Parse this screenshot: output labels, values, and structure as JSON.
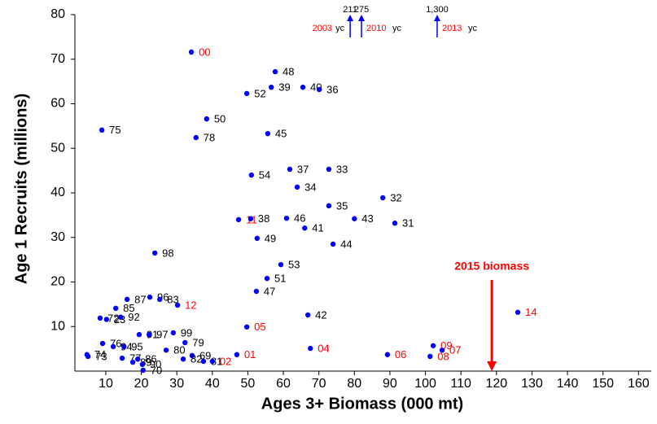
{
  "chart_data": {
    "type": "scatter",
    "x_label": "Ages 3+ Biomass (000 mt)",
    "y_label": "Age 1 Recruits (millions)",
    "xlim": [
      1.3,
      163.6
    ],
    "ylim": [
      0,
      80
    ],
    "xticks": [
      10,
      20,
      30,
      40,
      50,
      60,
      70,
      80,
      90,
      100,
      110,
      120,
      130,
      140,
      150,
      160
    ],
    "yticks": [
      10,
      20,
      30,
      40,
      50,
      60,
      70,
      80
    ],
    "marker_color": "#0000ff",
    "points": [
      {
        "x": 34.1,
        "y": 71.6,
        "label": "00",
        "color": "#ff0000"
      },
      {
        "x": 57.7,
        "y": 67.2,
        "label": "48",
        "color": "#000000"
      },
      {
        "x": 56.6,
        "y": 63.7,
        "label": "39",
        "color": "#000000"
      },
      {
        "x": 65.5,
        "y": 63.7,
        "label": "40",
        "color": "#000000"
      },
      {
        "x": 70.1,
        "y": 63.2,
        "label": "36",
        "color": "#000000"
      },
      {
        "x": 49.7,
        "y": 62.3,
        "label": "52",
        "color": "#000000"
      },
      {
        "x": 38.4,
        "y": 56.6,
        "label": "50",
        "color": "#000000"
      },
      {
        "x": 8.9,
        "y": 54.1,
        "label": "75",
        "color": "#000000"
      },
      {
        "x": 55.6,
        "y": 53.3,
        "label": "45",
        "color": "#000000"
      },
      {
        "x": 35.4,
        "y": 52.4,
        "label": "78",
        "color": "#000000"
      },
      {
        "x": 61.8,
        "y": 45.3,
        "label": "37",
        "color": "#000000"
      },
      {
        "x": 72.8,
        "y": 45.3,
        "label": "33",
        "color": "#000000"
      },
      {
        "x": 51.0,
        "y": 44.0,
        "label": "54",
        "color": "#000000"
      },
      {
        "x": 63.9,
        "y": 41.3,
        "label": "34",
        "color": "#000000"
      },
      {
        "x": 88.0,
        "y": 38.9,
        "label": "32",
        "color": "#000000"
      },
      {
        "x": 72.8,
        "y": 37.1,
        "label": "35",
        "color": "#000000"
      },
      {
        "x": 47.4,
        "y": 34.0,
        "label": "11",
        "color": "#ff0000"
      },
      {
        "x": 50.8,
        "y": 34.2,
        "label": "38",
        "color": "#000000"
      },
      {
        "x": 60.9,
        "y": 34.3,
        "label": "46",
        "color": "#000000"
      },
      {
        "x": 80.0,
        "y": 34.2,
        "label": "43",
        "color": "#000000"
      },
      {
        "x": 91.4,
        "y": 33.2,
        "label": "31",
        "color": "#000000"
      },
      {
        "x": 66.0,
        "y": 32.1,
        "label": "41",
        "color": "#000000"
      },
      {
        "x": 52.6,
        "y": 29.8,
        "label": "49",
        "color": "#000000"
      },
      {
        "x": 74.0,
        "y": 28.5,
        "label": "44",
        "color": "#000000"
      },
      {
        "x": 23.8,
        "y": 26.5,
        "label": "98",
        "color": "#000000"
      },
      {
        "x": 59.3,
        "y": 23.9,
        "label": "53",
        "color": "#000000"
      },
      {
        "x": 55.4,
        "y": 20.8,
        "label": "51",
        "color": "#000000"
      },
      {
        "x": 52.4,
        "y": 17.9,
        "label": "47",
        "color": "#000000"
      },
      {
        "x": 16.0,
        "y": 16.1,
        "label": "87",
        "color": "#000000"
      },
      {
        "x": 22.4,
        "y": 16.6,
        "label": "96",
        "color": "#000000"
      },
      {
        "x": 25.2,
        "y": 16.1,
        "label": "83",
        "color": "#000000"
      },
      {
        "x": 30.2,
        "y": 14.8,
        "label": "12",
        "color": "#ff0000"
      },
      {
        "x": 12.8,
        "y": 14.1,
        "label": "85",
        "color": "#000000"
      },
      {
        "x": 8.4,
        "y": 11.9,
        "label": "72",
        "color": "#000000"
      },
      {
        "x": 10.2,
        "y": 11.6,
        "label": "23",
        "color": "#000000"
      },
      {
        "x": 14.2,
        "y": 12.1,
        "label": "92",
        "color": "#000000"
      },
      {
        "x": 66.9,
        "y": 12.6,
        "label": "42",
        "color": "#000000"
      },
      {
        "x": 49.7,
        "y": 9.9,
        "label": "05",
        "color": "#ff0000"
      },
      {
        "x": 126.0,
        "y": 13.2,
        "label": "14",
        "color": "#ff0000"
      },
      {
        "x": 19.4,
        "y": 8.2,
        "label": "91",
        "color": "#000000"
      },
      {
        "x": 22.2,
        "y": 8.2,
        "label": "97",
        "color": "#000000"
      },
      {
        "x": 29.0,
        "y": 8.6,
        "label": "99",
        "color": "#000000"
      },
      {
        "x": 32.3,
        "y": 6.4,
        "label": "79",
        "color": "#000000"
      },
      {
        "x": 9.1,
        "y": 6.2,
        "label": "76",
        "color": "#000000"
      },
      {
        "x": 12.1,
        "y": 5.5,
        "label": "94",
        "color": "#000000"
      },
      {
        "x": 15.1,
        "y": 5.5,
        "label": "95",
        "color": "#000000"
      },
      {
        "x": 67.6,
        "y": 5.1,
        "label": "04",
        "color": "#ff0000"
      },
      {
        "x": 102.2,
        "y": 5.7,
        "label": "09",
        "color": "#ff0000"
      },
      {
        "x": 104.7,
        "y": 4.7,
        "label": "07",
        "color": "#ff0000"
      },
      {
        "x": 27.0,
        "y": 4.7,
        "label": "80",
        "color": "#000000"
      },
      {
        "x": 34.3,
        "y": 3.5,
        "label": "69",
        "color": "#000000"
      },
      {
        "x": 46.9,
        "y": 3.7,
        "label": "01",
        "color": "#ff0000"
      },
      {
        "x": 89.3,
        "y": 3.7,
        "label": "06",
        "color": "#ff0000"
      },
      {
        "x": 101.3,
        "y": 3.3,
        "label": "08",
        "color": "#ff0000"
      },
      {
        "x": 4.7,
        "y": 3.7,
        "label": "74",
        "color": "#000000"
      },
      {
        "x": 5.0,
        "y": 3.3,
        "label": "73",
        "color": "#000000"
      },
      {
        "x": 14.6,
        "y": 2.9,
        "label": "77",
        "color": "#000000"
      },
      {
        "x": 17.6,
        "y": 2.0,
        "label": "89",
        "color": "#000000"
      },
      {
        "x": 19.0,
        "y": 2.7,
        "label": "86",
        "color": "#000000"
      },
      {
        "x": 20.3,
        "y": 1.5,
        "label": "90",
        "color": "#000000"
      },
      {
        "x": 20.5,
        "y": 0.2,
        "label": "70",
        "color": "#000000"
      },
      {
        "x": 31.8,
        "y": 2.7,
        "label": "82",
        "color": "#000000"
      },
      {
        "x": 37.5,
        "y": 2.2,
        "label": "81",
        "color": "#000000"
      },
      {
        "x": 40.0,
        "y": 2.2,
        "label": "02",
        "color": "#ff0000"
      }
    ],
    "offscale": [
      {
        "x": 78.8,
        "value_label": "211",
        "year": "2003",
        "suffix": "yc"
      },
      {
        "x": 82.0,
        "value_label": "275",
        "year": "2010",
        "suffix": "yc"
      },
      {
        "x": 103.3,
        "value_label": "1,300",
        "year": "2013",
        "suffix": "yc"
      }
    ],
    "biomass_marker": {
      "x": 118.7,
      "label": "2015 biomass",
      "color": "#ff0000"
    }
  }
}
